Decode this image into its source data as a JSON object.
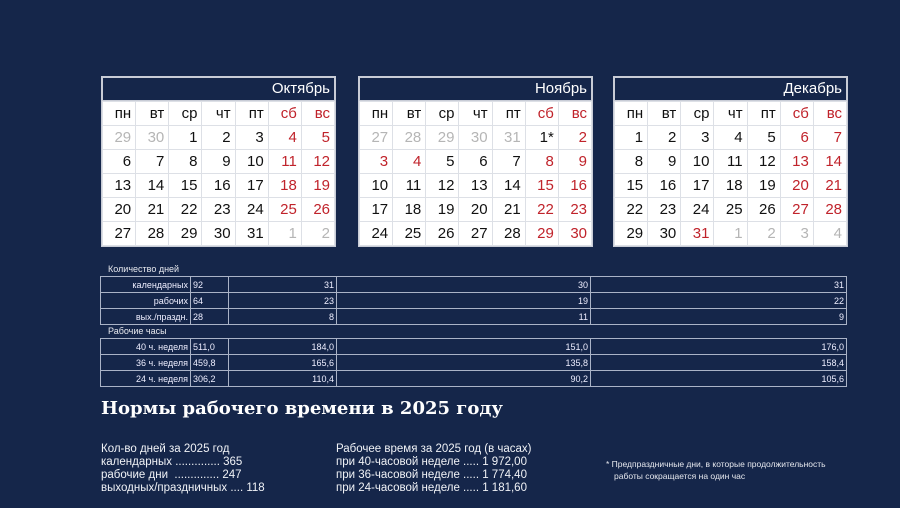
{
  "weekdays": [
    "пн",
    "вт",
    "ср",
    "чт",
    "пт",
    "сб",
    "вс"
  ],
  "calendars": [
    {
      "month": "Октябрь",
      "weeks": [
        [
          "29",
          "30",
          "1",
          "2",
          "3",
          "4",
          "5"
        ],
        [
          "6",
          "7",
          "8",
          "9",
          "10",
          "11",
          "12"
        ],
        [
          "13",
          "14",
          "15",
          "16",
          "17",
          "18",
          "19"
        ],
        [
          "20",
          "21",
          "22",
          "23",
          "24",
          "25",
          "26"
        ],
        [
          "27",
          "28",
          "29",
          "30",
          "31",
          "1",
          "2"
        ]
      ],
      "styles": [
        [
          "g",
          "g",
          "n",
          "n",
          "n",
          "r",
          "r"
        ],
        [
          "n",
          "n",
          "n",
          "n",
          "n",
          "r",
          "r"
        ],
        [
          "n",
          "n",
          "n",
          "n",
          "n",
          "r",
          "r"
        ],
        [
          "n",
          "n",
          "n",
          "n",
          "n",
          "r",
          "r"
        ],
        [
          "n",
          "n",
          "n",
          "n",
          "n",
          "g",
          "g"
        ]
      ]
    },
    {
      "month": "Ноябрь",
      "weeks": [
        [
          "27",
          "28",
          "29",
          "30",
          "31",
          "1*",
          "2"
        ],
        [
          "3",
          "4",
          "5",
          "6",
          "7",
          "8",
          "9"
        ],
        [
          "10",
          "11",
          "12",
          "13",
          "14",
          "15",
          "16"
        ],
        [
          "17",
          "18",
          "19",
          "20",
          "21",
          "22",
          "23"
        ],
        [
          "24",
          "25",
          "26",
          "27",
          "28",
          "29",
          "30"
        ]
      ],
      "styles": [
        [
          "g",
          "g",
          "g",
          "g",
          "g",
          "n",
          "r"
        ],
        [
          "r",
          "r",
          "n",
          "n",
          "n",
          "r",
          "r"
        ],
        [
          "n",
          "n",
          "n",
          "n",
          "n",
          "r",
          "r"
        ],
        [
          "n",
          "n",
          "n",
          "n",
          "n",
          "r",
          "r"
        ],
        [
          "n",
          "n",
          "n",
          "n",
          "n",
          "r",
          "r"
        ]
      ]
    },
    {
      "month": "Декабрь",
      "weeks": [
        [
          "1",
          "2",
          "3",
          "4",
          "5",
          "6",
          "7"
        ],
        [
          "8",
          "9",
          "10",
          "11",
          "12",
          "13",
          "14"
        ],
        [
          "15",
          "16",
          "17",
          "18",
          "19",
          "20",
          "21"
        ],
        [
          "22",
          "23",
          "24",
          "25",
          "26",
          "27",
          "28"
        ],
        [
          "29",
          "30",
          "31",
          "1",
          "2",
          "3",
          "4"
        ]
      ],
      "styles": [
        [
          "n",
          "n",
          "n",
          "n",
          "n",
          "r",
          "r"
        ],
        [
          "n",
          "n",
          "n",
          "n",
          "n",
          "r",
          "r"
        ],
        [
          "n",
          "n",
          "n",
          "n",
          "n",
          "r",
          "r"
        ],
        [
          "n",
          "n",
          "n",
          "n",
          "n",
          "r",
          "r"
        ],
        [
          "n",
          "n",
          "r",
          "g",
          "g",
          "g",
          "g"
        ]
      ]
    }
  ],
  "colors": {
    "background": "#15264a",
    "holiday": "#c0232b",
    "other_month": "#b5b5b5"
  },
  "days_section": {
    "title": "Количество дней",
    "rows": [
      {
        "label": "календарных",
        "total": "92",
        "months": [
          "31",
          "30",
          "31"
        ]
      },
      {
        "label": "рабочих",
        "total": "64",
        "months": [
          "23",
          "19",
          "22"
        ]
      },
      {
        "label": "вых./праздн.",
        "total": "28",
        "months": [
          "8",
          "11",
          "9"
        ]
      }
    ]
  },
  "hours_section": {
    "title": "Рабочие часы",
    "rows": [
      {
        "label": "40 ч. неделя",
        "total": "511,0",
        "months": [
          "184,0",
          "151,0",
          "176,0"
        ]
      },
      {
        "label": "36 ч. неделя",
        "total": "459,8",
        "months": [
          "165,6",
          "135,8",
          "158,4"
        ]
      },
      {
        "label": "24 ч. неделя",
        "total": "306,2",
        "months": [
          "110,4",
          "90,2",
          "105,6"
        ]
      }
    ]
  },
  "summary": {
    "title": "Нормы рабочего времени в 2025 году",
    "days": [
      "Кол-во дней за 2025 год",
      "календарных .............. 365",
      "рабочие дни  .............. 247",
      "выходных/праздничных .... 118"
    ],
    "hours": [
      "Рабочее время за 2025 год (в часах)",
      "при 40-часовой неделе ..... 1 972,00",
      "при 36-часовой неделе ..... 1 774,40",
      "при 24-часовой неделе ..... 1 181,60"
    ]
  },
  "footnote": [
    "* Предпраздничные дни, в которые продолжительность",
    "работы сокращается на один час"
  ]
}
